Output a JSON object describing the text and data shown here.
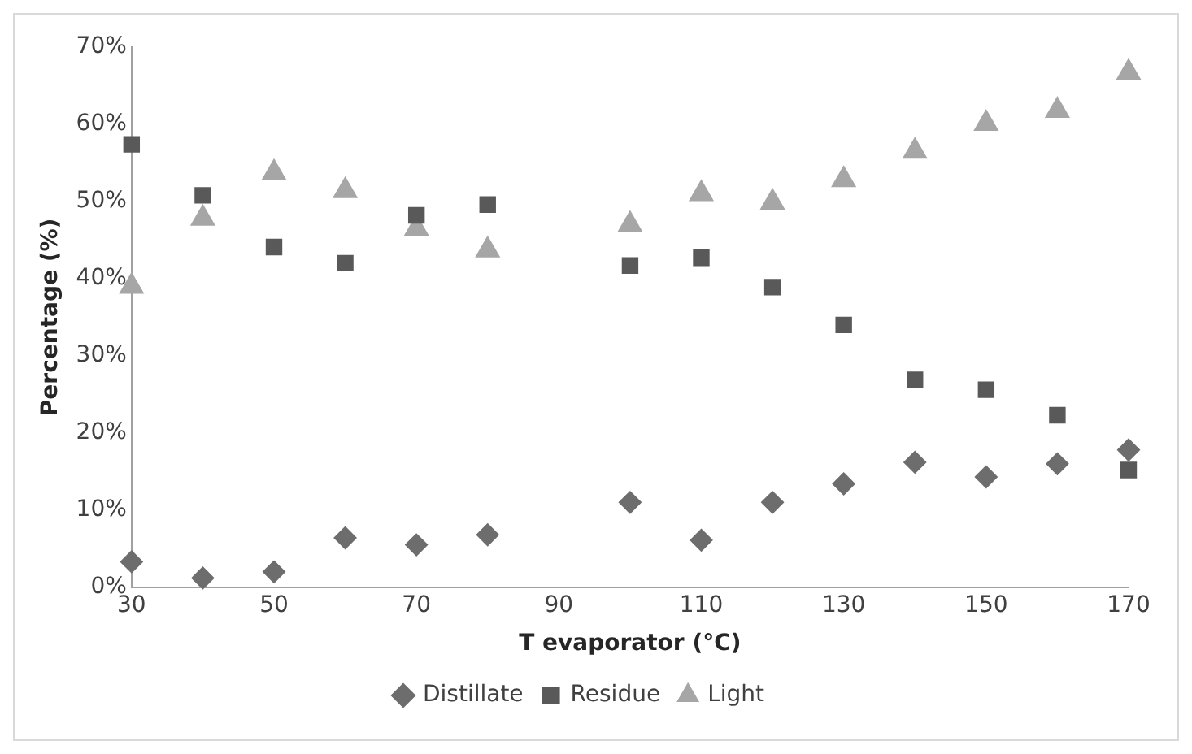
{
  "chart_data": {
    "type": "scatter",
    "xlabel": "T evaporator (°C)",
    "ylabel": "Percentage (%)",
    "x": [
      30,
      40,
      50,
      60,
      70,
      80,
      100,
      110,
      120,
      130,
      140,
      150,
      160,
      170
    ],
    "series": [
      {
        "name": "Distillate",
        "color": "#6d6d6d",
        "marker": "diamond",
        "values": [
          3.3,
          1.2,
          2.0,
          6.4,
          5.5,
          6.8,
          11,
          6.1,
          11,
          13.4,
          16.2,
          14.3,
          16,
          17.8
        ]
      },
      {
        "name": "Residue",
        "color": "#595959",
        "marker": "square",
        "values": [
          57.4,
          50.8,
          44.1,
          42,
          48.2,
          49.6,
          41.7,
          42.7,
          38.9,
          34,
          26.9,
          25.6,
          22.3,
          15.2
        ]
      },
      {
        "name": "Light",
        "color": "#a6a6a6",
        "marker": "triangle",
        "values": [
          39,
          47.8,
          53.7,
          51.4,
          46.5,
          43.7,
          47,
          51,
          49.9,
          52.8,
          56.5,
          60.1,
          61.8,
          66.7
        ]
      }
    ],
    "xlim": [
      30,
      170
    ],
    "xticks": [
      30,
      50,
      70,
      90,
      110,
      130,
      150,
      170
    ],
    "ylim": [
      0,
      70
    ],
    "yticks": [
      {
        "value": 0,
        "label": "0%"
      },
      {
        "value": 10,
        "label": "10%"
      },
      {
        "value": 20,
        "label": "20%"
      },
      {
        "value": 30,
        "label": "30%"
      },
      {
        "value": 40,
        "label": "40%"
      },
      {
        "value": 50,
        "label": "50%"
      },
      {
        "value": 60,
        "label": "60%"
      },
      {
        "value": 70,
        "label": "70%"
      }
    ],
    "grid": false,
    "legend": "bottom"
  }
}
